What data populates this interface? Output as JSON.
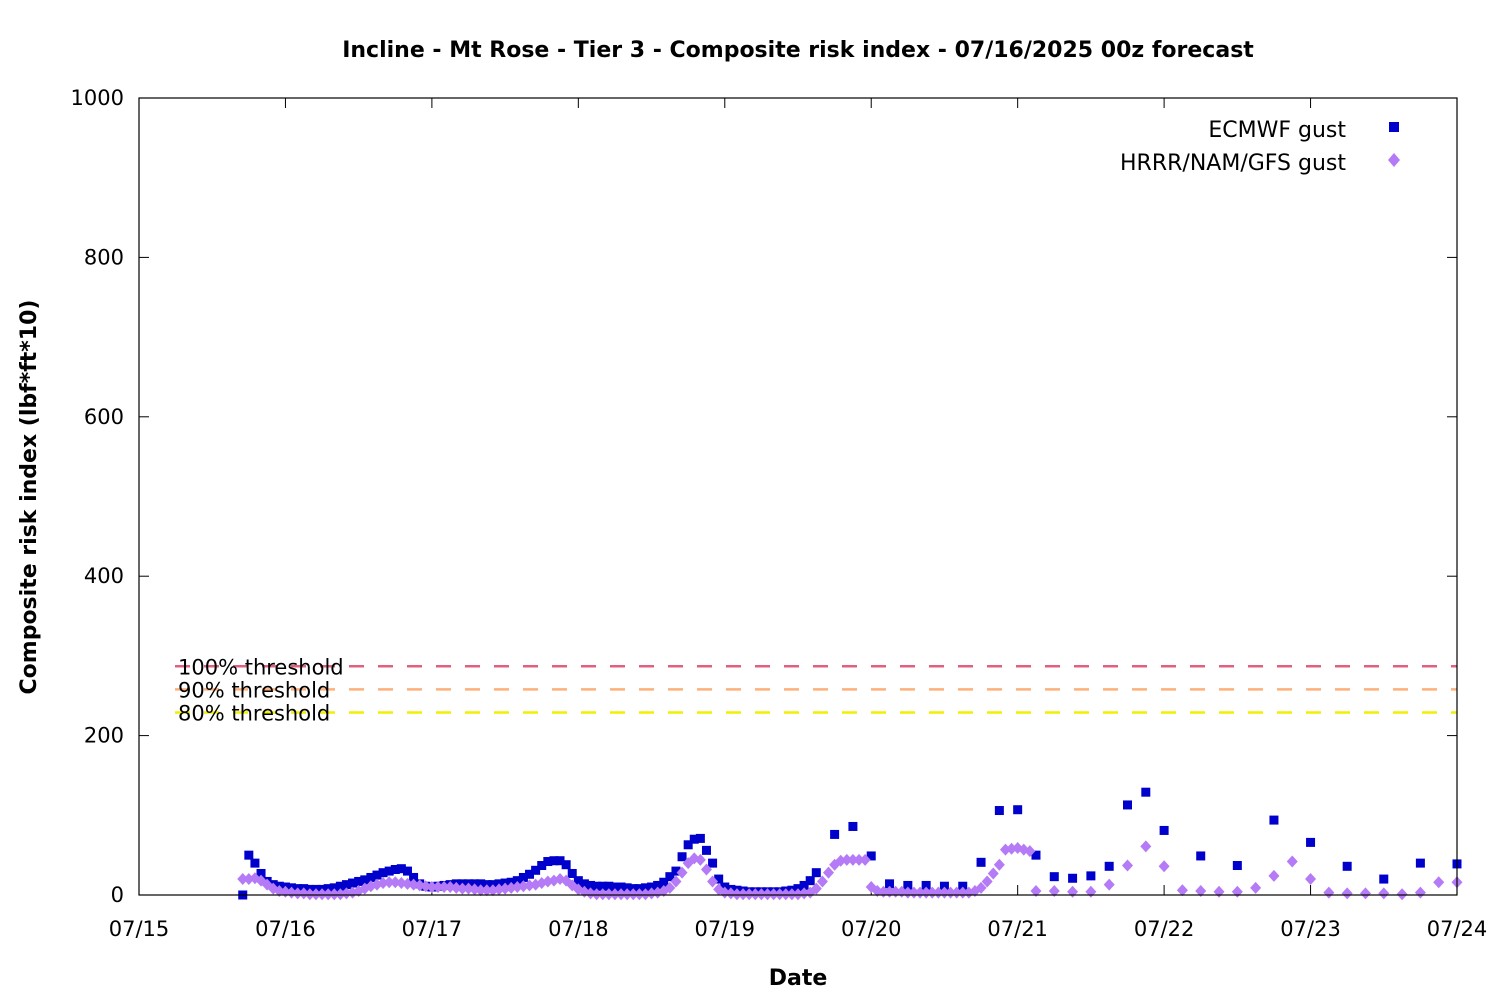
{
  "chart_data": {
    "type": "scatter",
    "title": "Incline - Mt Rose - Tier 3 - Composite risk index - 07/16/2025 00z forecast",
    "xlabel": "Date",
    "ylabel": "Composite risk index (lbf*ft*10)",
    "xlim": [
      "07/15 00z",
      "07/24 00z"
    ],
    "ylim": [
      0,
      1000
    ],
    "x_tick_labels": [
      "07/15",
      "07/16",
      "07/17",
      "07/18",
      "07/19",
      "07/20",
      "07/21",
      "07/22",
      "07/23",
      "07/24"
    ],
    "y_ticks": [
      0,
      200,
      400,
      600,
      800,
      1000
    ],
    "legend_position": "top-right",
    "thresholds": [
      {
        "label": "100% threshold",
        "value": 287,
        "color": "#e0607e"
      },
      {
        "label": "90% threshold",
        "value": 258,
        "color": "#fdb07a"
      },
      {
        "label": "80% threshold",
        "value": 229,
        "color": "#f0f000"
      }
    ],
    "series": [
      {
        "name": "ECMWF gust",
        "color": "#0000cc",
        "marker": "square",
        "points": [
          [
            "07/15 17z",
            0
          ],
          [
            "07/15 18z",
            50
          ],
          [
            "07/15 19z",
            40
          ],
          [
            "07/15 20z",
            27
          ],
          [
            "07/15 21z",
            17
          ],
          [
            "07/15 22z",
            13
          ],
          [
            "07/15 23z",
            11
          ],
          [
            "07/16 00z",
            10
          ],
          [
            "07/16 01z",
            9
          ],
          [
            "07/16 02z",
            8
          ],
          [
            "07/16 03z",
            8
          ],
          [
            "07/16 04z",
            7
          ],
          [
            "07/16 05z",
            7
          ],
          [
            "07/16 06z",
            7
          ],
          [
            "07/16 07z",
            8
          ],
          [
            "07/16 08z",
            9
          ],
          [
            "07/16 09z",
            11
          ],
          [
            "07/16 10z",
            13
          ],
          [
            "07/16 11z",
            15
          ],
          [
            "07/16 12z",
            17
          ],
          [
            "07/16 13z",
            19
          ],
          [
            "07/16 14z",
            22
          ],
          [
            "07/16 15z",
            25
          ],
          [
            "07/16 16z",
            28
          ],
          [
            "07/16 17z",
            30
          ],
          [
            "07/16 18z",
            32
          ],
          [
            "07/16 19z",
            33
          ],
          [
            "07/16 20z",
            30
          ],
          [
            "07/16 21z",
            22
          ],
          [
            "07/16 22z",
            14
          ],
          [
            "07/16 23z",
            11
          ],
          [
            "07/17 00z",
            10
          ],
          [
            "07/17 01z",
            11
          ],
          [
            "07/17 02z",
            12
          ],
          [
            "07/17 03z",
            13
          ],
          [
            "07/17 04z",
            14
          ],
          [
            "07/17 05z",
            14
          ],
          [
            "07/17 06z",
            14
          ],
          [
            "07/17 07z",
            14
          ],
          [
            "07/17 08z",
            14
          ],
          [
            "07/17 09z",
            13
          ],
          [
            "07/17 10z",
            13
          ],
          [
            "07/17 11z",
            14
          ],
          [
            "07/17 12z",
            15
          ],
          [
            "07/17 13z",
            16
          ],
          [
            "07/17 14z",
            18
          ],
          [
            "07/17 15z",
            22
          ],
          [
            "07/17 16z",
            26
          ],
          [
            "07/17 17z",
            31
          ],
          [
            "07/17 18z",
            37
          ],
          [
            "07/17 19z",
            42
          ],
          [
            "07/17 20z",
            43
          ],
          [
            "07/17 21z",
            43
          ],
          [
            "07/17 22z",
            38
          ],
          [
            "07/17 23z",
            27
          ],
          [
            "07/18 00z",
            18
          ],
          [
            "07/18 01z",
            14
          ],
          [
            "07/18 02z",
            12
          ],
          [
            "07/18 03z",
            11
          ],
          [
            "07/18 04z",
            11
          ],
          [
            "07/18 05z",
            11
          ],
          [
            "07/18 06z",
            10
          ],
          [
            "07/18 07z",
            10
          ],
          [
            "07/18 08z",
            9
          ],
          [
            "07/18 09z",
            8
          ],
          [
            "07/18 10z",
            8
          ],
          [
            "07/18 11z",
            9
          ],
          [
            "07/18 12z",
            10
          ],
          [
            "07/18 13z",
            12
          ],
          [
            "07/18 14z",
            16
          ],
          [
            "07/18 15z",
            23
          ],
          [
            "07/18 16z",
            30
          ],
          [
            "07/18 17z",
            48
          ],
          [
            "07/18 18z",
            63
          ],
          [
            "07/18 19z",
            70
          ],
          [
            "07/18 20z",
            71
          ],
          [
            "07/18 21z",
            56
          ],
          [
            "07/18 22z",
            40
          ],
          [
            "07/18 23z",
            20
          ],
          [
            "07/19 00z",
            10
          ],
          [
            "07/19 01z",
            7
          ],
          [
            "07/19 02z",
            6
          ],
          [
            "07/19 03z",
            5
          ],
          [
            "07/19 04z",
            4
          ],
          [
            "07/19 05z",
            4
          ],
          [
            "07/19 06z",
            4
          ],
          [
            "07/19 07z",
            4
          ],
          [
            "07/19 08z",
            4
          ],
          [
            "07/19 09z",
            4
          ],
          [
            "07/19 10z",
            5
          ],
          [
            "07/19 11z",
            6
          ],
          [
            "07/19 12z",
            8
          ],
          [
            "07/19 13z",
            12
          ],
          [
            "07/19 14z",
            18
          ],
          [
            "07/19 15z",
            28
          ],
          [
            "07/19 18z",
            76
          ],
          [
            "07/19 21z",
            86
          ],
          [
            "07/20 00z",
            49
          ],
          [
            "07/20 03z",
            14
          ],
          [
            "07/20 06z",
            12
          ],
          [
            "07/20 09z",
            12
          ],
          [
            "07/20 12z",
            11
          ],
          [
            "07/20 15z",
            11
          ],
          [
            "07/20 18z",
            41
          ],
          [
            "07/20 21z",
            106
          ],
          [
            "07/21 00z",
            107
          ],
          [
            "07/21 03z",
            50
          ],
          [
            "07/21 06z",
            23
          ],
          [
            "07/21 09z",
            21
          ],
          [
            "07/21 12z",
            24
          ],
          [
            "07/21 15z",
            36
          ],
          [
            "07/21 18z",
            113
          ],
          [
            "07/21 21z",
            129
          ],
          [
            "07/22 00z",
            81
          ],
          [
            "07/22 06z",
            49
          ],
          [
            "07/22 12z",
            37
          ],
          [
            "07/22 18z",
            94
          ],
          [
            "07/23 00z",
            66
          ],
          [
            "07/23 06z",
            36
          ],
          [
            "07/23 12z",
            20
          ],
          [
            "07/23 18z",
            40
          ],
          [
            "07/24 00z",
            39
          ]
        ]
      },
      {
        "name": "HRRR/NAM/GFS gust",
        "color": "#b57af5",
        "marker": "diamond",
        "points": [
          [
            "07/15 17z",
            20
          ],
          [
            "07/15 18z",
            20
          ],
          [
            "07/15 19z",
            21
          ],
          [
            "07/15 20z",
            18
          ],
          [
            "07/15 21z",
            13
          ],
          [
            "07/15 22z",
            8
          ],
          [
            "07/15 23z",
            5
          ],
          [
            "07/16 00z",
            4
          ],
          [
            "07/16 01z",
            3
          ],
          [
            "07/16 02z",
            2
          ],
          [
            "07/16 03z",
            2
          ],
          [
            "07/16 04z",
            1
          ],
          [
            "07/16 05z",
            1
          ],
          [
            "07/16 06z",
            1
          ],
          [
            "07/16 07z",
            1
          ],
          [
            "07/16 08z",
            1
          ],
          [
            "07/16 09z",
            1
          ],
          [
            "07/16 10z",
            2
          ],
          [
            "07/16 11z",
            3
          ],
          [
            "07/16 12z",
            5
          ],
          [
            "07/16 13z",
            8
          ],
          [
            "07/16 14z",
            11
          ],
          [
            "07/16 15z",
            13
          ],
          [
            "07/16 16z",
            15
          ],
          [
            "07/16 17z",
            16
          ],
          [
            "07/16 18z",
            16
          ],
          [
            "07/16 19z",
            15
          ],
          [
            "07/16 20z",
            14
          ],
          [
            "07/16 21z",
            13
          ],
          [
            "07/16 22z",
            12
          ],
          [
            "07/16 23z",
            11
          ],
          [
            "07/17 00z",
            10
          ],
          [
            "07/17 01z",
            10
          ],
          [
            "07/17 02z",
            10
          ],
          [
            "07/17 03z",
            10
          ],
          [
            "07/17 04z",
            9
          ],
          [
            "07/17 05z",
            8
          ],
          [
            "07/17 06z",
            8
          ],
          [
            "07/17 07z",
            7
          ],
          [
            "07/17 08z",
            6
          ],
          [
            "07/17 09z",
            6
          ],
          [
            "07/17 10z",
            6
          ],
          [
            "07/17 11z",
            7
          ],
          [
            "07/17 12z",
            8
          ],
          [
            "07/17 13z",
            9
          ],
          [
            "07/17 14z",
            10
          ],
          [
            "07/17 15z",
            11
          ],
          [
            "07/17 16z",
            12
          ],
          [
            "07/17 17z",
            13
          ],
          [
            "07/17 18z",
            15
          ],
          [
            "07/17 19z",
            17
          ],
          [
            "07/17 20z",
            18
          ],
          [
            "07/17 21z",
            20
          ],
          [
            "07/17 22z",
            18
          ],
          [
            "07/17 23z",
            12
          ],
          [
            "07/18 00z",
            7
          ],
          [
            "07/18 01z",
            4
          ],
          [
            "07/18 02z",
            2
          ],
          [
            "07/18 03z",
            1
          ],
          [
            "07/18 04z",
            1
          ],
          [
            "07/18 05z",
            1
          ],
          [
            "07/18 06z",
            1
          ],
          [
            "07/18 07z",
            1
          ],
          [
            "07/18 08z",
            1
          ],
          [
            "07/18 09z",
            1
          ],
          [
            "07/18 10z",
            1
          ],
          [
            "07/18 11z",
            1
          ],
          [
            "07/18 12z",
            2
          ],
          [
            "07/18 13z",
            3
          ],
          [
            "07/18 14z",
            5
          ],
          [
            "07/18 15z",
            9
          ],
          [
            "07/18 16z",
            17
          ],
          [
            "07/18 17z",
            28
          ],
          [
            "07/18 18z",
            40
          ],
          [
            "07/18 19z",
            46
          ],
          [
            "07/18 20z",
            44
          ],
          [
            "07/18 21z",
            32
          ],
          [
            "07/18 22z",
            17
          ],
          [
            "07/18 23z",
            7
          ],
          [
            "07/19 00z",
            3
          ],
          [
            "07/19 01z",
            2
          ],
          [
            "07/19 02z",
            1
          ],
          [
            "07/19 03z",
            1
          ],
          [
            "07/19 04z",
            1
          ],
          [
            "07/19 05z",
            1
          ],
          [
            "07/19 06z",
            1
          ],
          [
            "07/19 07z",
            1
          ],
          [
            "07/19 08z",
            1
          ],
          [
            "07/19 09z",
            1
          ],
          [
            "07/19 10z",
            1
          ],
          [
            "07/19 11z",
            1
          ],
          [
            "07/19 12z",
            1
          ],
          [
            "07/19 13z",
            2
          ],
          [
            "07/19 14z",
            3
          ],
          [
            "07/19 15z",
            8
          ],
          [
            "07/19 16z",
            17
          ],
          [
            "07/19 17z",
            28
          ],
          [
            "07/19 18z",
            38
          ],
          [
            "07/19 19z",
            43
          ],
          [
            "07/19 20z",
            44
          ],
          [
            "07/19 21z",
            44
          ],
          [
            "07/19 22z",
            44
          ],
          [
            "07/19 23z",
            44
          ],
          [
            "07/20 00z",
            10
          ],
          [
            "07/20 01z",
            5
          ],
          [
            "07/20 02z",
            4
          ],
          [
            "07/20 03z",
            4
          ],
          [
            "07/20 04z",
            4
          ],
          [
            "07/20 05z",
            4
          ],
          [
            "07/20 06z",
            3
          ],
          [
            "07/20 07z",
            3
          ],
          [
            "07/20 08z",
            3
          ],
          [
            "07/20 09z",
            3
          ],
          [
            "07/20 10z",
            3
          ],
          [
            "07/20 11z",
            3
          ],
          [
            "07/20 12z",
            3
          ],
          [
            "07/20 13z",
            3
          ],
          [
            "07/20 14z",
            3
          ],
          [
            "07/20 15z",
            3
          ],
          [
            "07/20 16z",
            3
          ],
          [
            "07/20 17z",
            5
          ],
          [
            "07/20 18z",
            9
          ],
          [
            "07/20 19z",
            17
          ],
          [
            "07/20 20z",
            27
          ],
          [
            "07/20 21z",
            38
          ],
          [
            "07/20 22z",
            57
          ],
          [
            "07/20 23z",
            58
          ],
          [
            "07/21 00z",
            59
          ],
          [
            "07/21 01z",
            57
          ],
          [
            "07/21 02z",
            55
          ],
          [
            "07/21 03z",
            5
          ],
          [
            "07/21 06z",
            5
          ],
          [
            "07/21 09z",
            4
          ],
          [
            "07/21 12z",
            4
          ],
          [
            "07/21 15z",
            13
          ],
          [
            "07/21 18z",
            37
          ],
          [
            "07/21 21z",
            61
          ],
          [
            "07/22 00z",
            36
          ],
          [
            "07/22 03z",
            6
          ],
          [
            "07/22 06z",
            5
          ],
          [
            "07/22 09z",
            4
          ],
          [
            "07/22 12z",
            4
          ],
          [
            "07/22 15z",
            9
          ],
          [
            "07/22 18z",
            24
          ],
          [
            "07/22 21z",
            42
          ],
          [
            "07/23 00z",
            20
          ],
          [
            "07/23 03z",
            3
          ],
          [
            "07/23 06z",
            2
          ],
          [
            "07/23 09z",
            2
          ],
          [
            "07/23 12z",
            2
          ],
          [
            "07/23 15z",
            1
          ],
          [
            "07/23 18z",
            3
          ],
          [
            "07/23 21z",
            16
          ],
          [
            "07/24 00z",
            16
          ]
        ]
      }
    ]
  }
}
